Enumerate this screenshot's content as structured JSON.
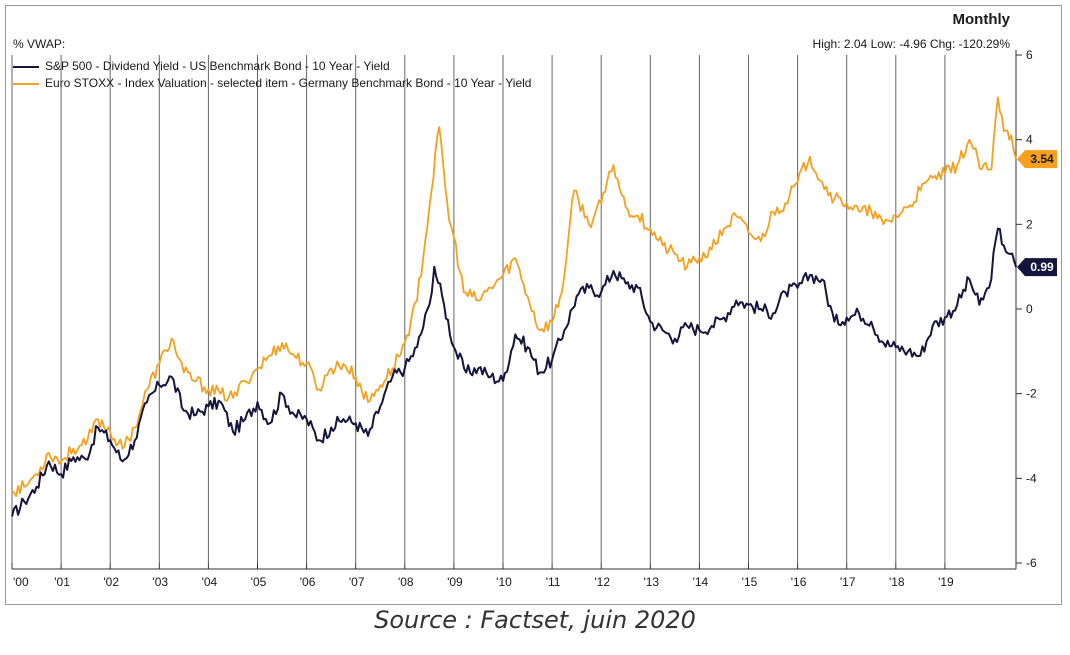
{
  "header": {
    "frequency": "Monthly",
    "stats": "High: 2.04 Low: -4.96 Chg: -120.29%",
    "unit": "% VWAP:"
  },
  "source": "Source : Factset, juin 2020",
  "colors": {
    "series1": "#14143c",
    "series2": "#f5a01e",
    "grid": "#666666",
    "axis": "#333333"
  },
  "chart_data": {
    "type": "line",
    "x_tick_labels": [
      "'00",
      "'01",
      "'02",
      "'03",
      "'04",
      "'05",
      "'06",
      "'07",
      "'08",
      "'09",
      "'10",
      "'11",
      "'12",
      "'13",
      "'14",
      "'15",
      "'16",
      "'17",
      "'18",
      "'19"
    ],
    "x_range": [
      2000.0,
      2020.5
    ],
    "y_ticks": [
      6,
      4,
      2,
      0,
      -2,
      -4,
      -6
    ],
    "ylim": [
      -6,
      6
    ],
    "y_axis_side": "right",
    "grid": "vertical lines at each year",
    "legend_position": "top-left",
    "series": [
      {
        "name": "S&P 500 - Dividend Yield - US Benchmark Bond - 10 Year - Yield",
        "color": "#14143c",
        "last_value_label": "0.99",
        "points": [
          [
            2000.0,
            -4.9
          ],
          [
            2000.25,
            -4.55
          ],
          [
            2000.5,
            -4.2
          ],
          [
            2000.75,
            -3.6
          ],
          [
            2001.0,
            -3.9
          ],
          [
            2001.25,
            -3.5
          ],
          [
            2001.5,
            -3.55
          ],
          [
            2001.75,
            -2.8
          ],
          [
            2002.0,
            -3.1
          ],
          [
            2002.25,
            -3.6
          ],
          [
            2002.5,
            -3.1
          ],
          [
            2002.75,
            -2.2
          ],
          [
            2003.0,
            -1.8
          ],
          [
            2003.25,
            -1.6
          ],
          [
            2003.5,
            -2.4
          ],
          [
            2003.75,
            -2.5
          ],
          [
            2004.0,
            -2.3
          ],
          [
            2004.25,
            -2.2
          ],
          [
            2004.5,
            -2.9
          ],
          [
            2004.75,
            -2.6
          ],
          [
            2005.0,
            -2.2
          ],
          [
            2005.25,
            -2.7
          ],
          [
            2005.5,
            -2.0
          ],
          [
            2005.75,
            -2.5
          ],
          [
            2006.0,
            -2.6
          ],
          [
            2006.25,
            -3.1
          ],
          [
            2006.5,
            -2.8
          ],
          [
            2006.75,
            -2.6
          ],
          [
            2007.0,
            -2.7
          ],
          [
            2007.25,
            -3.0
          ],
          [
            2007.5,
            -2.3
          ],
          [
            2007.75,
            -1.6
          ],
          [
            2008.0,
            -1.4
          ],
          [
            2008.25,
            -0.9
          ],
          [
            2008.5,
            0.1
          ],
          [
            2008.6,
            1.0
          ],
          [
            2008.8,
            0.1
          ],
          [
            2009.0,
            -0.9
          ],
          [
            2009.25,
            -1.5
          ],
          [
            2009.5,
            -1.4
          ],
          [
            2009.75,
            -1.6
          ],
          [
            2010.0,
            -1.7
          ],
          [
            2010.25,
            -0.6
          ],
          [
            2010.5,
            -0.9
          ],
          [
            2010.75,
            -1.5
          ],
          [
            2011.0,
            -1.2
          ],
          [
            2011.25,
            -0.5
          ],
          [
            2011.5,
            0.3
          ],
          [
            2011.75,
            0.5
          ],
          [
            2012.0,
            0.4
          ],
          [
            2012.25,
            0.9
          ],
          [
            2012.5,
            0.6
          ],
          [
            2012.75,
            0.5
          ],
          [
            2013.0,
            -0.3
          ],
          [
            2013.25,
            -0.5
          ],
          [
            2013.5,
            -0.7
          ],
          [
            2013.75,
            -0.4
          ],
          [
            2014.0,
            -0.5
          ],
          [
            2014.25,
            -0.4
          ],
          [
            2014.5,
            -0.2
          ],
          [
            2014.75,
            0.2
          ],
          [
            2015.0,
            0.1
          ],
          [
            2015.25,
            0.0
          ],
          [
            2015.5,
            -0.1
          ],
          [
            2015.75,
            0.4
          ],
          [
            2016.0,
            0.5
          ],
          [
            2016.25,
            0.8
          ],
          [
            2016.5,
            0.7
          ],
          [
            2016.75,
            -0.3
          ],
          [
            2017.0,
            -0.2
          ],
          [
            2017.25,
            -0.1
          ],
          [
            2017.5,
            -0.3
          ],
          [
            2017.75,
            -0.8
          ],
          [
            2018.0,
            -0.9
          ],
          [
            2018.25,
            -1.0
          ],
          [
            2018.5,
            -1.1
          ],
          [
            2018.75,
            -0.4
          ],
          [
            2019.0,
            -0.2
          ],
          [
            2019.25,
            0.1
          ],
          [
            2019.5,
            0.7
          ],
          [
            2019.7,
            0.1
          ],
          [
            2019.9,
            0.5
          ],
          [
            2020.08,
            1.9
          ],
          [
            2020.2,
            1.5
          ],
          [
            2020.33,
            1.3
          ],
          [
            2020.45,
            0.99
          ]
        ]
      },
      {
        "name": "Euro STOXX - Index Valuation - selected item - Germany Benchmark Bond - 10 Year - Yield",
        "color": "#f5a01e",
        "last_value_label": "3.54",
        "points": [
          [
            2000.0,
            -4.3
          ],
          [
            2000.25,
            -4.2
          ],
          [
            2000.5,
            -3.9
          ],
          [
            2000.75,
            -3.4
          ],
          [
            2001.0,
            -3.6
          ],
          [
            2001.25,
            -3.3
          ],
          [
            2001.5,
            -3.2
          ],
          [
            2001.75,
            -2.6
          ],
          [
            2002.0,
            -2.9
          ],
          [
            2002.25,
            -3.3
          ],
          [
            2002.5,
            -2.8
          ],
          [
            2002.75,
            -1.9
          ],
          [
            2003.0,
            -1.3
          ],
          [
            2003.25,
            -0.7
          ],
          [
            2003.5,
            -1.5
          ],
          [
            2003.75,
            -1.7
          ],
          [
            2004.0,
            -1.9
          ],
          [
            2004.25,
            -2.0
          ],
          [
            2004.5,
            -2.1
          ],
          [
            2004.75,
            -1.7
          ],
          [
            2005.0,
            -1.4
          ],
          [
            2005.25,
            -1.1
          ],
          [
            2005.5,
            -0.8
          ],
          [
            2005.75,
            -1.1
          ],
          [
            2006.0,
            -1.3
          ],
          [
            2006.25,
            -1.9
          ],
          [
            2006.5,
            -1.4
          ],
          [
            2006.75,
            -1.3
          ],
          [
            2007.0,
            -1.6
          ],
          [
            2007.25,
            -2.2
          ],
          [
            2007.5,
            -1.8
          ],
          [
            2007.75,
            -1.4
          ],
          [
            2008.0,
            -0.8
          ],
          [
            2008.25,
            0.2
          ],
          [
            2008.5,
            2.4
          ],
          [
            2008.7,
            4.3
          ],
          [
            2008.9,
            2.1
          ],
          [
            2009.0,
            1.7
          ],
          [
            2009.2,
            0.4
          ],
          [
            2009.5,
            0.2
          ],
          [
            2009.75,
            0.5
          ],
          [
            2010.0,
            0.8
          ],
          [
            2010.25,
            1.2
          ],
          [
            2010.5,
            0.3
          ],
          [
            2010.75,
            -0.5
          ],
          [
            2011.0,
            -0.3
          ],
          [
            2011.2,
            0.4
          ],
          [
            2011.45,
            2.8
          ],
          [
            2011.75,
            2.0
          ],
          [
            2012.0,
            2.5
          ],
          [
            2012.25,
            3.4
          ],
          [
            2012.5,
            2.4
          ],
          [
            2012.75,
            2.2
          ],
          [
            2013.0,
            1.9
          ],
          [
            2013.25,
            1.5
          ],
          [
            2013.5,
            1.3
          ],
          [
            2013.75,
            1.0
          ],
          [
            2014.0,
            1.2
          ],
          [
            2014.25,
            1.4
          ],
          [
            2014.5,
            1.9
          ],
          [
            2014.75,
            2.2
          ],
          [
            2015.0,
            1.8
          ],
          [
            2015.25,
            1.6
          ],
          [
            2015.5,
            2.3
          ],
          [
            2015.75,
            2.5
          ],
          [
            2016.0,
            3.0
          ],
          [
            2016.25,
            3.6
          ],
          [
            2016.5,
            3.0
          ],
          [
            2016.75,
            2.6
          ],
          [
            2017.0,
            2.5
          ],
          [
            2017.25,
            2.3
          ],
          [
            2017.5,
            2.3
          ],
          [
            2017.75,
            2.0
          ],
          [
            2018.0,
            2.2
          ],
          [
            2018.25,
            2.4
          ],
          [
            2018.5,
            2.8
          ],
          [
            2018.75,
            3.1
          ],
          [
            2019.0,
            3.2
          ],
          [
            2019.25,
            3.4
          ],
          [
            2019.5,
            4.0
          ],
          [
            2019.75,
            3.3
          ],
          [
            2019.95,
            3.3
          ],
          [
            2020.08,
            5.0
          ],
          [
            2020.2,
            4.2
          ],
          [
            2020.35,
            4.1
          ],
          [
            2020.45,
            3.54
          ]
        ]
      }
    ]
  }
}
